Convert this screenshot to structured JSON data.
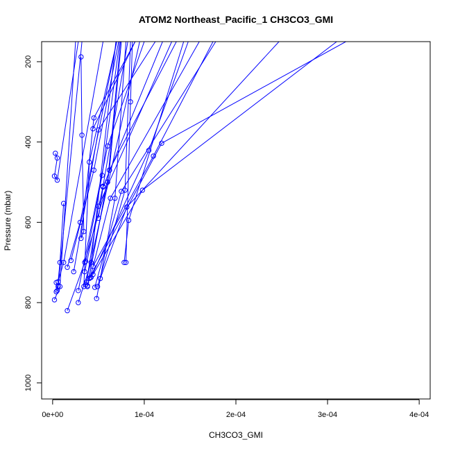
{
  "chart_data": {
    "type": "line",
    "title": "ATOM2 Northeast_Pacific_1 CH3CO3_GMI",
    "xlabel": "CH3CO3_GMI",
    "ylabel": "Pressure (mbar)",
    "x_ticks": [
      "0e+00",
      "1e-04",
      "2e-04",
      "3e-04",
      "4e-04"
    ],
    "x_tick_values": [
      0,
      0.0001,
      0.0002,
      0.0003,
      0.0004
    ],
    "y_ticks": [
      "200",
      "400",
      "600",
      "800",
      "1000"
    ],
    "y_tick_values": [
      200,
      400,
      600,
      800,
      1000
    ],
    "xlim": [
      -1.2e-05,
      0.000412
    ],
    "ylim": [
      1040,
      150
    ],
    "y_reversed": true,
    "grid": false,
    "color": "#0000ff",
    "segments": [
      [
        [
          2e-06,
          793
        ],
        [
          8e-06,
          760
        ],
        [
          2.5e-05,
          150
        ]
      ],
      [
        [
          4e-06,
          773
        ],
        [
          6e-06,
          760
        ],
        [
          3.2e-05,
          150
        ]
      ],
      [
        [
          6e-06,
          748
        ],
        [
          1.2e-05,
          700
        ],
        [
          5.5e-05,
          150
        ]
      ],
      [
        [
          3e-06,
          428
        ],
        [
          5e-06,
          440
        ],
        [
          2e-06,
          485
        ],
        [
          5e-06,
          495
        ],
        [
          2.8e-05,
          150
        ]
      ],
      [
        [
          1.2e-05,
          553
        ],
        [
          8e-06,
          700
        ],
        [
          5e-06,
          770
        ],
        [
          4e-06,
          750
        ]
      ],
      [
        [
          1.6e-05,
          712
        ],
        [
          3e-05,
          600
        ],
        [
          7e-05,
          150
        ]
      ],
      [
        [
          2e-05,
          695
        ],
        [
          4.5e-05,
          470
        ],
        [
          7.2e-05,
          150
        ]
      ],
      [
        [
          2.3e-05,
          723
        ],
        [
          5e-05,
          370
        ],
        [
          0.000112,
          150
        ]
      ],
      [
        [
          3.1e-05,
          188
        ],
        [
          3.2e-05,
          383
        ],
        [
          3.4e-05,
          623
        ],
        [
          3.1e-05,
          640
        ],
        [
          4.5e-05,
          340
        ],
        [
          9e-05,
          150
        ]
      ],
      [
        [
          1.6e-05,
          820
        ],
        [
          3.5e-05,
          700
        ],
        [
          6e-05,
          500
        ],
        [
          7.4e-05,
          150
        ]
      ],
      [
        [
          2.8e-05,
          800
        ],
        [
          4.2e-05,
          700
        ],
        [
          6.9e-05,
          150
        ]
      ],
      [
        [
          3.4e-05,
          760
        ],
        [
          4e-05,
          450
        ],
        [
          7e-05,
          150
        ]
      ],
      [
        [
          3.5e-05,
          723
        ],
        [
          5.5e-05,
          510
        ],
        [
          8.2e-05,
          150
        ]
      ],
      [
        [
          3.6e-05,
          697
        ],
        [
          5.4e-05,
          483
        ],
        [
          7.3e-05,
          150
        ]
      ],
      [
        [
          3.8e-05,
          760
        ],
        [
          6.2e-05,
          470
        ],
        [
          0.000135,
          150
        ]
      ],
      [
        [
          4.2e-05,
          737
        ],
        [
          0.000105,
          421
        ],
        [
          0.000148,
          150
        ]
      ],
      [
        [
          4.4e-05,
          710
        ],
        [
          0.00011,
          435
        ],
        [
          0.000175,
          150
        ]
      ],
      [
        [
          4.4e-05,
          367
        ],
        [
          9e-05,
          150
        ]
      ],
      [
        [
          4.6e-05,
          762
        ],
        [
          7.5e-05,
          523
        ],
        [
          0.000178,
          150
        ]
      ],
      [
        [
          4.8e-05,
          790
        ],
        [
          6.8e-05,
          540
        ],
        [
          8e-05,
          150
        ]
      ],
      [
        [
          4.9e-05,
          760
        ],
        [
          7.9e-05,
          520
        ],
        [
          8.5e-05,
          150
        ]
      ],
      [
        [
          5e-05,
          590
        ],
        [
          5.5e-05,
          512
        ],
        [
          0.00012,
          150
        ]
      ],
      [
        [
          5.2e-05,
          740
        ],
        [
          8.1e-05,
          562
        ],
        [
          0.000247,
          150
        ]
      ],
      [
        [
          4.4e-05,
          730
        ],
        [
          9.8e-05,
          520
        ],
        [
          0.00031,
          150
        ]
      ],
      [
        [
          4e-05,
          740
        ],
        [
          0.000119,
          403
        ],
        [
          0.00032,
          150
        ]
      ],
      [
        [
          7.8e-05,
          700
        ],
        [
          8.3e-05,
          595
        ],
        [
          0.000143,
          150
        ]
      ],
      [
        [
          8e-05,
          700
        ],
        [
          8.5e-05,
          300
        ],
        [
          8.7e-05,
          150
        ]
      ],
      [
        [
          2.8e-05,
          770
        ],
        [
          6e-05,
          410
        ],
        [
          0.0001,
          150
        ]
      ],
      [
        [
          3.7e-05,
          749
        ],
        [
          5e-05,
          560
        ],
        [
          0.00013,
          150
        ]
      ],
      [
        [
          4.1e-05,
          738
        ],
        [
          6.3e-05,
          540
        ],
        [
          0.00016,
          150
        ]
      ],
      [
        [
          3.6e-05,
          755
        ],
        [
          9.5e-05,
          150
        ]
      ],
      [
        [
          3.8e-05,
          758
        ],
        [
          6.2e-05,
          470
        ],
        [
          7.5e-05,
          150
        ]
      ]
    ]
  }
}
